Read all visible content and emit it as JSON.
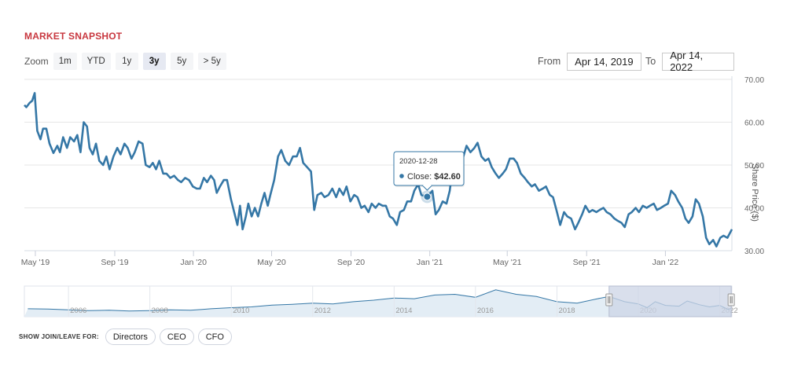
{
  "header": {
    "title": "MARKET SNAPSHOT"
  },
  "zoom": {
    "label": "Zoom",
    "buttons": [
      "1m",
      "YTD",
      "1y",
      "3y",
      "5y",
      "> 5y"
    ],
    "active": "3y"
  },
  "range": {
    "from_label": "From",
    "from_value": "Apr 14, 2019",
    "to_label": "To",
    "to_value": "Apr 14, 2022"
  },
  "tooltip": {
    "date": "2020-12-28",
    "label": "Close:",
    "value": "$42.60"
  },
  "footer": {
    "label": "SHOW JOIN/LEAVE FOR:",
    "buttons": [
      "Directors",
      "CEO",
      "CFO"
    ]
  },
  "colors": {
    "line": "#3577a6",
    "title": "#c8373f",
    "navigator_fill": "#e3edf5",
    "navigator_mask": "#ccd4e6"
  },
  "chart_data": {
    "type": "line",
    "ylabel": "Share Price ($)",
    "ylim": [
      30,
      70
    ],
    "yticks": [
      "30.00",
      "40.00",
      "50.00",
      "60.00",
      "70.00"
    ],
    "xlim": [
      "2019-04-14",
      "2022-04-14"
    ],
    "xticks": [
      {
        "date": "2019-05-01",
        "label": "May '19"
      },
      {
        "date": "2019-09-01",
        "label": "Sep '19"
      },
      {
        "date": "2020-01-01",
        "label": "Jan '20"
      },
      {
        "date": "2020-05-01",
        "label": "May '20"
      },
      {
        "date": "2020-09-01",
        "label": "Sep '20"
      },
      {
        "date": "2021-01-01",
        "label": "Jan '21"
      },
      {
        "date": "2021-05-01",
        "label": "May '21"
      },
      {
        "date": "2021-09-01",
        "label": "Sep '21"
      },
      {
        "date": "2022-01-01",
        "label": "Jan '22"
      }
    ],
    "grid": true,
    "series": [
      {
        "points": [
          [
            "2019-04-14",
            64
          ],
          [
            "2019-04-17",
            63.5
          ],
          [
            "2019-04-22",
            64.5
          ],
          [
            "2019-04-26",
            65
          ],
          [
            "2019-04-30",
            66.8
          ],
          [
            "2019-05-04",
            58
          ],
          [
            "2019-05-09",
            56
          ],
          [
            "2019-05-13",
            58.5
          ],
          [
            "2019-05-18",
            58.5
          ],
          [
            "2019-05-23",
            55
          ],
          [
            "2019-05-29",
            52.8
          ],
          [
            "2019-06-04",
            54.5
          ],
          [
            "2019-06-08",
            53
          ],
          [
            "2019-06-13",
            56.5
          ],
          [
            "2019-06-19",
            54
          ],
          [
            "2019-06-24",
            56.5
          ],
          [
            "2019-06-30",
            55.5
          ],
          [
            "2019-07-05",
            57
          ],
          [
            "2019-07-10",
            53
          ],
          [
            "2019-07-15",
            60
          ],
          [
            "2019-07-20",
            59
          ],
          [
            "2019-07-24",
            54
          ],
          [
            "2019-07-29",
            52.5
          ],
          [
            "2019-08-03",
            55
          ],
          [
            "2019-08-08",
            51
          ],
          [
            "2019-08-14",
            50
          ],
          [
            "2019-08-19",
            52
          ],
          [
            "2019-08-24",
            49
          ],
          [
            "2019-08-30",
            52
          ],
          [
            "2019-09-05",
            54
          ],
          [
            "2019-09-10",
            52.5
          ],
          [
            "2019-09-16",
            55
          ],
          [
            "2019-09-21",
            54
          ],
          [
            "2019-09-27",
            51.5
          ],
          [
            "2019-10-02",
            53
          ],
          [
            "2019-10-08",
            55.5
          ],
          [
            "2019-10-14",
            55
          ],
          [
            "2019-10-19",
            50
          ],
          [
            "2019-10-25",
            49.5
          ],
          [
            "2019-10-30",
            50.5
          ],
          [
            "2019-11-04",
            49
          ],
          [
            "2019-11-09",
            51
          ],
          [
            "2019-11-15",
            48
          ],
          [
            "2019-11-20",
            48
          ],
          [
            "2019-11-26",
            47
          ],
          [
            "2019-12-02",
            47.5
          ],
          [
            "2019-12-08",
            46.5
          ],
          [
            "2019-12-13",
            46
          ],
          [
            "2019-12-19",
            47
          ],
          [
            "2019-12-25",
            46.5
          ],
          [
            "2019-12-31",
            45
          ],
          [
            "2020-01-06",
            44.5
          ],
          [
            "2020-01-11",
            44.5
          ],
          [
            "2020-01-17",
            47
          ],
          [
            "2020-01-22",
            46
          ],
          [
            "2020-01-28",
            47.5
          ],
          [
            "2020-02-02",
            46.5
          ],
          [
            "2020-02-06",
            43.5
          ],
          [
            "2020-02-11",
            45
          ],
          [
            "2020-02-17",
            46.5
          ],
          [
            "2020-02-22",
            46.5
          ],
          [
            "2020-02-28",
            42
          ],
          [
            "2020-03-04",
            39
          ],
          [
            "2020-03-09",
            36
          ],
          [
            "2020-03-13",
            40.5
          ],
          [
            "2020-03-17",
            35
          ],
          [
            "2020-03-22",
            38
          ],
          [
            "2020-03-26",
            41
          ],
          [
            "2020-03-31",
            38
          ],
          [
            "2020-04-05",
            40
          ],
          [
            "2020-04-10",
            38
          ],
          [
            "2020-04-15",
            41
          ],
          [
            "2020-04-20",
            43.5
          ],
          [
            "2020-04-25",
            40.5
          ],
          [
            "2020-04-29",
            43
          ],
          [
            "2020-05-05",
            46.5
          ],
          [
            "2020-05-11",
            52
          ],
          [
            "2020-05-16",
            53.5
          ],
          [
            "2020-05-22",
            51
          ],
          [
            "2020-05-28",
            50
          ],
          [
            "2020-06-03",
            52
          ],
          [
            "2020-06-09",
            52
          ],
          [
            "2020-06-14",
            54
          ],
          [
            "2020-06-19",
            50.5
          ],
          [
            "2020-06-25",
            49.5
          ],
          [
            "2020-07-01",
            48.5
          ],
          [
            "2020-07-06",
            39.5
          ],
          [
            "2020-07-11",
            43
          ],
          [
            "2020-07-17",
            43.5
          ],
          [
            "2020-07-22",
            42.5
          ],
          [
            "2020-07-28",
            43
          ],
          [
            "2020-08-03",
            44.5
          ],
          [
            "2020-08-09",
            42.5
          ],
          [
            "2020-08-14",
            44.5
          ],
          [
            "2020-08-20",
            43
          ],
          [
            "2020-08-25",
            45
          ],
          [
            "2020-08-31",
            41.5
          ],
          [
            "2020-09-06",
            43
          ],
          [
            "2020-09-11",
            42.5
          ],
          [
            "2020-09-17",
            40
          ],
          [
            "2020-09-22",
            40.5
          ],
          [
            "2020-09-28",
            39
          ],
          [
            "2020-10-03",
            41
          ],
          [
            "2020-10-09",
            40
          ],
          [
            "2020-10-14",
            41
          ],
          [
            "2020-10-20",
            40.5
          ],
          [
            "2020-10-25",
            40.5
          ],
          [
            "2020-10-31",
            38
          ],
          [
            "2020-11-05",
            37.5
          ],
          [
            "2020-11-11",
            36
          ],
          [
            "2020-11-16",
            39
          ],
          [
            "2020-11-22",
            39.5
          ],
          [
            "2020-11-27",
            41.5
          ],
          [
            "2020-12-03",
            41.5
          ],
          [
            "2020-12-08",
            44
          ],
          [
            "2020-12-14",
            45.5
          ],
          [
            "2020-12-19",
            43
          ],
          [
            "2020-12-28",
            42.6
          ],
          [
            "2021-01-05",
            44
          ],
          [
            "2021-01-10",
            38.5
          ],
          [
            "2021-01-15",
            39.5
          ],
          [
            "2021-01-21",
            41.5
          ],
          [
            "2021-01-27",
            41
          ],
          [
            "2021-02-01",
            44
          ],
          [
            "2021-02-06",
            50
          ],
          [
            "2021-02-11",
            47
          ],
          [
            "2021-02-16",
            50.5
          ],
          [
            "2021-02-22",
            52
          ],
          [
            "2021-02-27",
            54.5
          ],
          [
            "2021-03-05",
            53
          ],
          [
            "2021-03-11",
            54
          ],
          [
            "2021-03-16",
            55.2
          ],
          [
            "2021-03-22",
            52
          ],
          [
            "2021-03-28",
            51
          ],
          [
            "2021-04-02",
            51.5
          ],
          [
            "2021-04-07",
            49.5
          ],
          [
            "2021-04-13",
            48
          ],
          [
            "2021-04-18",
            47
          ],
          [
            "2021-04-24",
            48
          ],
          [
            "2021-04-29",
            49
          ],
          [
            "2021-05-05",
            51.5
          ],
          [
            "2021-05-11",
            51.5
          ],
          [
            "2021-05-16",
            50.5
          ],
          [
            "2021-05-22",
            48
          ],
          [
            "2021-05-28",
            47
          ],
          [
            "2021-06-02",
            46
          ],
          [
            "2021-06-08",
            45
          ],
          [
            "2021-06-13",
            45.5
          ],
          [
            "2021-06-19",
            44
          ],
          [
            "2021-06-25",
            44.5
          ],
          [
            "2021-06-30",
            45
          ],
          [
            "2021-07-06",
            43
          ],
          [
            "2021-07-11",
            42.5
          ],
          [
            "2021-07-17",
            39
          ],
          [
            "2021-07-22",
            36
          ],
          [
            "2021-07-28",
            39
          ],
          [
            "2021-08-02",
            38
          ],
          [
            "2021-08-08",
            37.5
          ],
          [
            "2021-08-14",
            35
          ],
          [
            "2021-08-19",
            36.5
          ],
          [
            "2021-08-25",
            38.5
          ],
          [
            "2021-08-30",
            40.5
          ],
          [
            "2021-09-05",
            39
          ],
          [
            "2021-09-10",
            39.5
          ],
          [
            "2021-09-16",
            39
          ],
          [
            "2021-09-21",
            39.5
          ],
          [
            "2021-09-27",
            40
          ],
          [
            "2021-10-02",
            39
          ],
          [
            "2021-10-08",
            38.5
          ],
          [
            "2021-10-14",
            37.5
          ],
          [
            "2021-10-19",
            37
          ],
          [
            "2021-10-25",
            36.5
          ],
          [
            "2021-10-30",
            35.5
          ],
          [
            "2021-11-05",
            38.5
          ],
          [
            "2021-11-10",
            39
          ],
          [
            "2021-11-16",
            40
          ],
          [
            "2021-11-21",
            39
          ],
          [
            "2021-11-27",
            40.5
          ],
          [
            "2021-12-03",
            40
          ],
          [
            "2021-12-08",
            40.5
          ],
          [
            "2021-12-14",
            41
          ],
          [
            "2021-12-19",
            39.5
          ],
          [
            "2021-12-25",
            40
          ],
          [
            "2021-12-30",
            40.5
          ],
          [
            "2022-01-05",
            41
          ],
          [
            "2022-01-10",
            44
          ],
          [
            "2022-01-16",
            43
          ],
          [
            "2022-01-21",
            41.5
          ],
          [
            "2022-01-27",
            40
          ],
          [
            "2022-02-01",
            37.5
          ],
          [
            "2022-02-06",
            36.5
          ],
          [
            "2022-02-12",
            38
          ],
          [
            "2022-02-17",
            42
          ],
          [
            "2022-02-22",
            41
          ],
          [
            "2022-02-28",
            38
          ],
          [
            "2022-03-05",
            33
          ],
          [
            "2022-03-10",
            31.5
          ],
          [
            "2022-03-16",
            32.5
          ],
          [
            "2022-03-21",
            31
          ],
          [
            "2022-03-27",
            33
          ],
          [
            "2022-04-01",
            33.5
          ],
          [
            "2022-04-07",
            33
          ],
          [
            "2022-04-14",
            35
          ]
        ]
      }
    ]
  },
  "navigator": {
    "labels": [
      "2006",
      "2008",
      "2010",
      "2012",
      "2014",
      "2016",
      "2018",
      "2020",
      "2022"
    ],
    "series": [
      [
        "2005-01-01",
        33
      ],
      [
        "2005-07-01",
        32
      ],
      [
        "2006-01-01",
        30
      ],
      [
        "2006-07-01",
        28
      ],
      [
        "2007-01-01",
        29
      ],
      [
        "2007-07-01",
        27
      ],
      [
        "2008-01-01",
        28
      ],
      [
        "2008-07-01",
        30
      ],
      [
        "2009-01-01",
        29
      ],
      [
        "2009-07-01",
        33
      ],
      [
        "2010-01-01",
        36
      ],
      [
        "2010-07-01",
        38
      ],
      [
        "2011-01-01",
        43
      ],
      [
        "2011-07-01",
        45
      ],
      [
        "2012-01-01",
        48
      ],
      [
        "2012-07-01",
        46
      ],
      [
        "2013-01-01",
        52
      ],
      [
        "2013-07-01",
        56
      ],
      [
        "2014-01-01",
        62
      ],
      [
        "2014-07-01",
        60
      ],
      [
        "2015-01-01",
        70
      ],
      [
        "2015-07-01",
        72
      ],
      [
        "2016-01-01",
        64
      ],
      [
        "2016-07-01",
        84
      ],
      [
        "2017-01-01",
        72
      ],
      [
        "2017-07-01",
        66
      ],
      [
        "2018-01-01",
        52
      ],
      [
        "2018-07-01",
        48
      ],
      [
        "2019-01-01",
        60
      ],
      [
        "2019-04-14",
        66
      ],
      [
        "2019-09-01",
        52
      ],
      [
        "2020-01-01",
        46
      ],
      [
        "2020-03-20",
        36
      ],
      [
        "2020-06-01",
        52
      ],
      [
        "2020-09-01",
        42
      ],
      [
        "2021-01-01",
        40
      ],
      [
        "2021-03-15",
        54
      ],
      [
        "2021-07-01",
        44
      ],
      [
        "2021-10-01",
        38
      ],
      [
        "2022-01-01",
        42
      ],
      [
        "2022-03-20",
        31
      ],
      [
        "2022-04-14",
        35
      ]
    ],
    "xlim": [
      "2004-12-01",
      "2022-04-20"
    ],
    "selection": [
      "2019-04-14",
      "2022-04-14"
    ]
  }
}
